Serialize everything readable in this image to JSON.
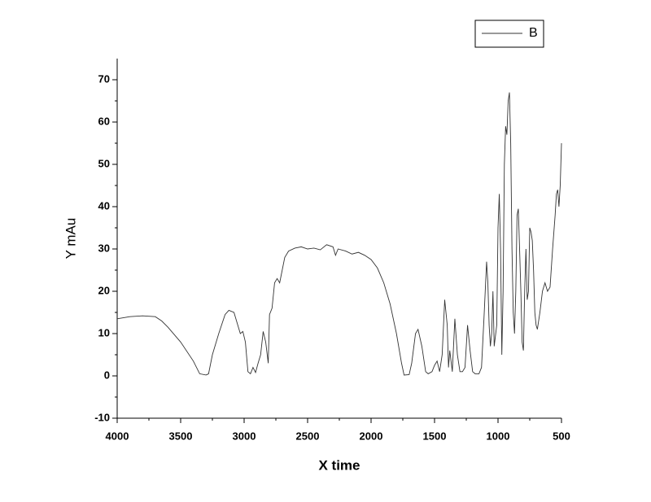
{
  "chart_data": {
    "type": "line",
    "xlabel": "X time",
    "ylabel": "Y mAu",
    "xlim": [
      4000,
      500
    ],
    "ylim": [
      -10,
      75
    ],
    "xticks": [
      4000,
      3500,
      3000,
      2500,
      2000,
      1500,
      1000,
      500
    ],
    "yticks": [
      -10,
      0,
      10,
      20,
      30,
      40,
      50,
      60,
      70
    ],
    "legend": "upper right",
    "x": [
      4000,
      3900,
      3800,
      3700,
      3650,
      3600,
      3500,
      3400,
      3350,
      3300,
      3280,
      3250,
      3200,
      3150,
      3120,
      3080,
      3050,
      3030,
      3010,
      2990,
      2970,
      2950,
      2930,
      2910,
      2890,
      2870,
      2850,
      2830,
      2810,
      2800,
      2780,
      2760,
      2740,
      2720,
      2700,
      2680,
      2650,
      2600,
      2550,
      2500,
      2450,
      2400,
      2350,
      2300,
      2280,
      2260,
      2200,
      2150,
      2100,
      2050,
      2000,
      1950,
      1900,
      1850,
      1800,
      1760,
      1740,
      1700,
      1680,
      1650,
      1630,
      1600,
      1570,
      1550,
      1520,
      1500,
      1480,
      1460,
      1440,
      1420,
      1400,
      1390,
      1380,
      1360,
      1340,
      1320,
      1300,
      1280,
      1260,
      1240,
      1220,
      1200,
      1180,
      1150,
      1130,
      1110,
      1090,
      1080,
      1070,
      1060,
      1050,
      1040,
      1030,
      1010,
      1000,
      990,
      980,
      970,
      960,
      950,
      940,
      930,
      920,
      910,
      900,
      890,
      880,
      870,
      860,
      850,
      840,
      830,
      820,
      810,
      800,
      790,
      780,
      770,
      760,
      750,
      740,
      730,
      720,
      710,
      700,
      690,
      670,
      650,
      630,
      610,
      590,
      570,
      550,
      540,
      530,
      520,
      510,
      500
    ],
    "series": [
      {
        "name": "B",
        "color": "#333333",
        "values": [
          13.5,
          14,
          14.2,
          14,
          13,
          11.5,
          8,
          3.5,
          0.5,
          0.2,
          0.5,
          5,
          10,
          14.5,
          15.5,
          15,
          12,
          10,
          10.5,
          8,
          1,
          0.5,
          2,
          0.8,
          3,
          5,
          10.5,
          8,
          3,
          14.5,
          16,
          22,
          23,
          22,
          25,
          28,
          29.5,
          30.2,
          30.5,
          30,
          30.2,
          29.8,
          31,
          30.5,
          28.5,
          30,
          29.5,
          28.8,
          29.2,
          28.5,
          27.5,
          25.5,
          22,
          17,
          10,
          3,
          0.2,
          0.3,
          3,
          10,
          11,
          7,
          1,
          0.5,
          1,
          2.5,
          3.5,
          1,
          5,
          18,
          12,
          2,
          6,
          1,
          13.5,
          5,
          1,
          1,
          2,
          12,
          6,
          1,
          0.5,
          0.5,
          2,
          14,
          27,
          22,
          12,
          7,
          10,
          20,
          7,
          12,
          35,
          43,
          30,
          5,
          20,
          50,
          59,
          57,
          65,
          67,
          55,
          30,
          15,
          10,
          20,
          38,
          39.5,
          30,
          20,
          8,
          6,
          20,
          30,
          18,
          20,
          35,
          34,
          32,
          25,
          15,
          12,
          11,
          15,
          20,
          22,
          20,
          21,
          30,
          38,
          43,
          44,
          40,
          45,
          55
        ]
      }
    ]
  }
}
